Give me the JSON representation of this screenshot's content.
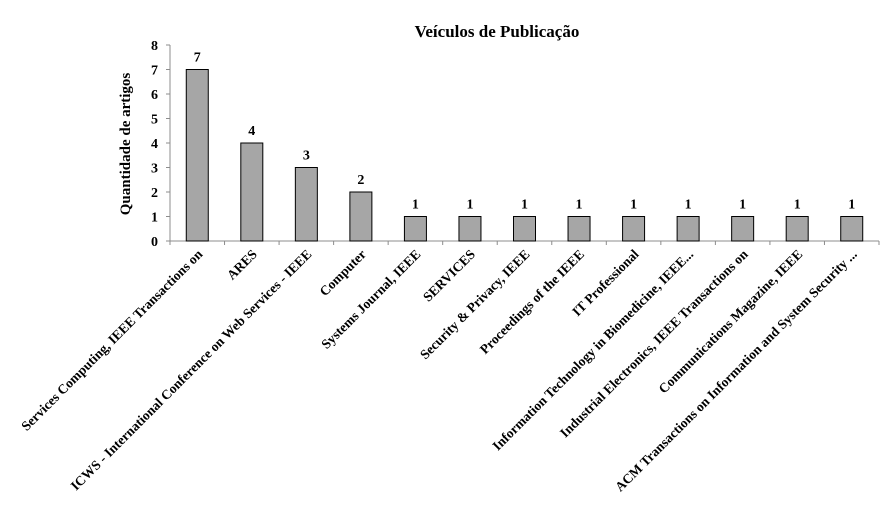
{
  "chart_data": {
    "type": "bar",
    "title": "Veículos de Publicação",
    "xlabel": "",
    "ylabel": "Quantidade de artigos",
    "ylim": [
      0,
      8
    ],
    "yticks": [
      0,
      1,
      2,
      3,
      4,
      5,
      6,
      7,
      8
    ],
    "grid": false,
    "legend": "none",
    "bar_color": "#a6a6a6",
    "bar_edge_color": "#000000",
    "categories": [
      "Services Computing, IEEE Transactions on",
      "ARES",
      "ICWS - International Conference on Web Services  - IEEE",
      "Computer",
      "Systems Journal, IEEE",
      "SERVICES",
      "Security & Privacy, IEEE",
      "Proceedings of the IEEE",
      "IT Professional",
      "Information Technology in Biomedicine, IEEE...",
      "Industrial Electronics, IEEE Transactions on",
      "Communications Magazine, IEEE",
      "ACM Transactions on Information and System Security ..."
    ],
    "values": [
      7,
      4,
      3,
      2,
      1,
      1,
      1,
      1,
      1,
      1,
      1,
      1,
      1
    ]
  }
}
